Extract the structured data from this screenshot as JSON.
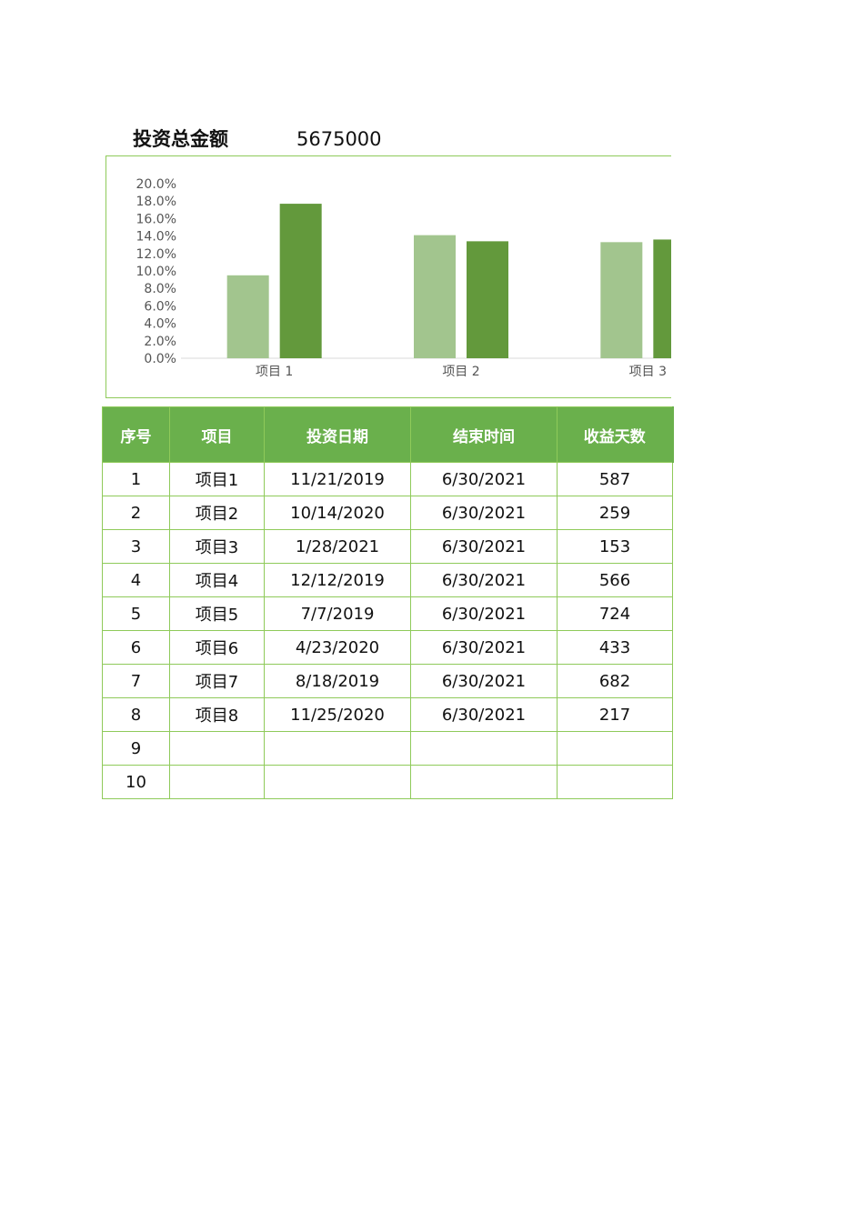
{
  "summary": {
    "label": "投资总金额",
    "value": "5675000"
  },
  "chart_data": {
    "type": "bar",
    "categories": [
      "项目 1",
      "项目 2",
      "项目 3"
    ],
    "series": [
      {
        "values": [
          9.5,
          14.1,
          13.3
        ],
        "color": "#a2c58e"
      },
      {
        "values": [
          17.7,
          13.4,
          13.6
        ],
        "color": "#63993c"
      }
    ],
    "ylim": [
      0,
      20
    ],
    "yticks": [
      "0.0%",
      "2.0%",
      "4.0%",
      "6.0%",
      "8.0%",
      "10.0%",
      "12.0%",
      "14.0%",
      "16.0%",
      "18.0%",
      "20.0%"
    ],
    "grid": false,
    "legend": "none"
  },
  "table": {
    "headers": [
      "序号",
      "项目",
      "投资日期",
      "结束时间",
      "收益天数"
    ],
    "rows": [
      [
        "1",
        "项目1",
        "11/21/2019",
        "6/30/2021",
        "587"
      ],
      [
        "2",
        "项目2",
        "10/14/2020",
        "6/30/2021",
        "259"
      ],
      [
        "3",
        "项目3",
        "1/28/2021",
        "6/30/2021",
        "153"
      ],
      [
        "4",
        "项目4",
        "12/12/2019",
        "6/30/2021",
        "566"
      ],
      [
        "5",
        "项目5",
        "7/7/2019",
        "6/30/2021",
        "724"
      ],
      [
        "6",
        "项目6",
        "4/23/2020",
        "6/30/2021",
        "433"
      ],
      [
        "7",
        "项目7",
        "8/18/2019",
        "6/30/2021",
        "682"
      ],
      [
        "8",
        "项目8",
        "11/25/2020",
        "6/30/2021",
        "217"
      ],
      [
        "9",
        "",
        "",
        "",
        ""
      ],
      [
        "10",
        "",
        "",
        "",
        ""
      ]
    ]
  }
}
